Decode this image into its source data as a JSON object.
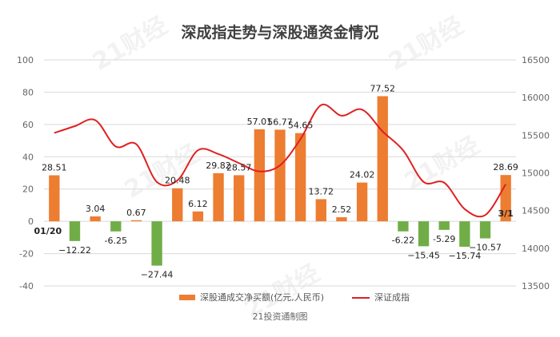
{
  "chart_data": {
    "type": "bar+line",
    "title": "深成指走势与深股通资金情况",
    "source": "21投资通制图",
    "watermark": "21财经",
    "y_left": {
      "min": -40,
      "max": 100,
      "ticks": [
        -40,
        -20,
        0,
        20,
        40,
        60,
        80,
        100
      ]
    },
    "y_right": {
      "min": 13500,
      "max": 16500,
      "ticks": [
        13500,
        14000,
        14500,
        15000,
        15500,
        16000,
        16500
      ]
    },
    "start_label": "01/20",
    "end_label": "3/1",
    "series": [
      {
        "name": "深股通成交净买额(亿元,人民币)",
        "type": "bar",
        "color_pos": "#ed7d31",
        "color_neg": "#70ad47",
        "values": [
          28.51,
          -12.22,
          3.04,
          -6.25,
          0.67,
          -27.44,
          20.48,
          6.12,
          29.82,
          28.57,
          57.01,
          56.77,
          54.65,
          13.72,
          2.52,
          24.02,
          77.52,
          -6.22,
          -15.45,
          -5.29,
          -15.74,
          -10.57,
          28.69
        ],
        "labels": [
          "28.51",
          "−12.22",
          "3.04",
          "-6.25",
          "0.67",
          "−27.44",
          "20.48",
          "6.12",
          "29.82",
          "28.57",
          "57.01",
          "56.77",
          "54.65",
          "13.72",
          "2.52",
          "24.02",
          "77.52",
          "-6.22",
          "−15.45",
          "-5.29",
          "−15.74",
          "−10.57",
          "28.69"
        ]
      },
      {
        "name": "深证成指",
        "type": "line",
        "color": "#e02020",
        "values": [
          15530,
          15620,
          15700,
          15350,
          15380,
          14880,
          14900,
          15300,
          15250,
          15130,
          15020,
          15100,
          15450,
          15900,
          15760,
          15840,
          15550,
          15300,
          14880,
          14870,
          14520,
          14440,
          14850
        ]
      }
    ]
  }
}
